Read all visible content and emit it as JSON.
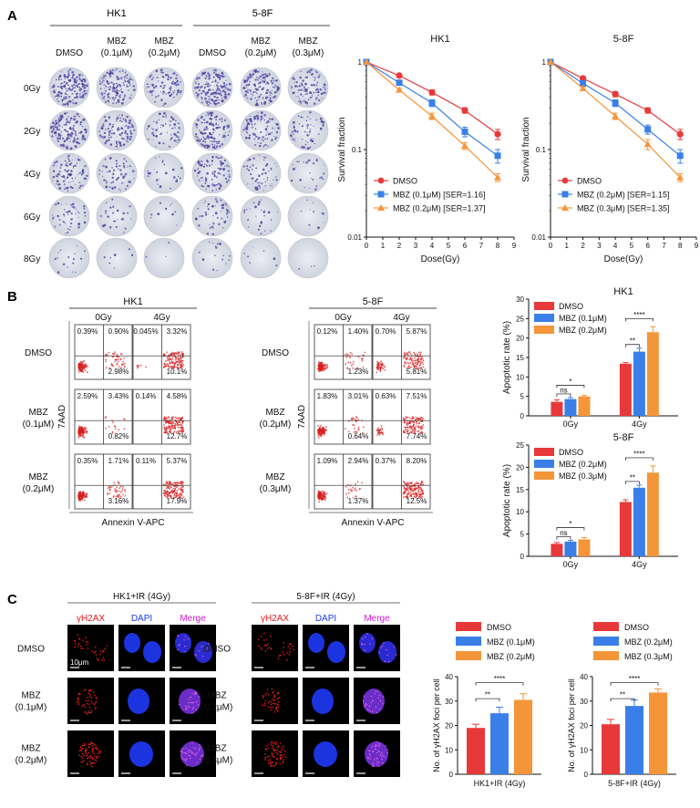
{
  "panel_labels": [
    "A",
    "B",
    "C"
  ],
  "panelA": {
    "group_labels": [
      "HK1",
      "5-8F"
    ],
    "column_headers": [
      [
        "DMSO",
        ""
      ],
      [
        "MBZ",
        "(0.1μM)"
      ],
      [
        "MBZ",
        "(0.2μM)"
      ],
      [
        "DMSO",
        ""
      ],
      [
        "MBZ",
        "(0.2μM)"
      ],
      [
        "MBZ",
        "(0.3μM)"
      ]
    ],
    "row_labels": [
      "0Gy",
      "2Gy",
      "4Gy",
      "6Gy",
      "8Gy"
    ],
    "colony_density": [
      [
        1.0,
        0.85,
        0.55,
        1.0,
        0.85,
        0.6
      ],
      [
        0.85,
        0.65,
        0.35,
        0.85,
        0.6,
        0.35
      ],
      [
        0.55,
        0.35,
        0.15,
        0.55,
        0.35,
        0.15
      ],
      [
        0.3,
        0.15,
        0.06,
        0.3,
        0.15,
        0.06
      ],
      [
        0.1,
        0.04,
        0.02,
        0.1,
        0.04,
        0.02
      ]
    ]
  },
  "chart_data": [
    {
      "type": "line",
      "title": "HK1",
      "xlabel": "Dose(Gy)",
      "ylabel": "Survival fraction",
      "yscale": "log",
      "xlim": [
        0,
        9
      ],
      "ylim": [
        0.01,
        1
      ],
      "x_ticks": [
        "0",
        "1",
        "2",
        "3",
        "4",
        "5",
        "6",
        "7",
        "8",
        "9"
      ],
      "y_ticks": [
        "1",
        "0.1",
        "0.01"
      ],
      "legend_position": "bottom-left",
      "series": [
        {
          "name": "DMSO",
          "color": "#e8393a",
          "marker": "circle",
          "x": [
            0,
            2,
            4,
            6,
            8
          ],
          "y": [
            1,
            0.7,
            0.45,
            0.28,
            0.15
          ],
          "err": [
            0,
            0.03,
            0.03,
            0.02,
            0.02
          ]
        },
        {
          "name": "MBZ (0.1μM) [SER=1.16]",
          "color": "#3a7fe8",
          "marker": "square",
          "x": [
            0,
            2,
            4,
            6,
            8
          ],
          "y": [
            1,
            0.58,
            0.34,
            0.16,
            0.085
          ],
          "err": [
            0,
            0.03,
            0.03,
            0.02,
            0.015
          ]
        },
        {
          "name": "MBZ (0.2μM) [SER=1.37]",
          "color": "#f5953a",
          "marker": "triangle",
          "x": [
            0,
            2,
            4,
            6,
            8
          ],
          "y": [
            1,
            0.48,
            0.24,
            0.11,
            0.048
          ],
          "err": [
            0,
            0.02,
            0.02,
            0.01,
            0.005
          ]
        }
      ]
    },
    {
      "type": "line",
      "title": "5-8F",
      "xlabel": "Dose(Gy)",
      "ylabel": "Survival fraction",
      "yscale": "log",
      "xlim": [
        0,
        9
      ],
      "ylim": [
        0.01,
        1
      ],
      "x_ticks": [
        "0",
        "1",
        "2",
        "3",
        "4",
        "5",
        "6",
        "7",
        "8",
        "9"
      ],
      "y_ticks": [
        "1",
        "0.1",
        "0.01"
      ],
      "legend_position": "bottom-left",
      "series": [
        {
          "name": "DMSO",
          "color": "#e8393a",
          "marker": "circle",
          "x": [
            0,
            2,
            4,
            6,
            8
          ],
          "y": [
            1,
            0.65,
            0.43,
            0.28,
            0.15
          ],
          "err": [
            0,
            0.03,
            0.03,
            0.02,
            0.02
          ]
        },
        {
          "name": "MBZ (0.2μM) [SER=1.15]",
          "color": "#3a7fe8",
          "marker": "square",
          "x": [
            0,
            2,
            4,
            6,
            8
          ],
          "y": [
            1,
            0.57,
            0.34,
            0.17,
            0.085
          ],
          "err": [
            0,
            0.03,
            0.03,
            0.02,
            0.015
          ]
        },
        {
          "name": "MBZ (0.3μM) [SER=1.35]",
          "color": "#f5953a",
          "marker": "triangle",
          "x": [
            0,
            2,
            4,
            6,
            8
          ],
          "y": [
            1,
            0.5,
            0.24,
            0.115,
            0.048
          ],
          "err": [
            0,
            0.02,
            0.02,
            0.015,
            0.005
          ]
        }
      ]
    },
    {
      "type": "bar",
      "title": "HK1",
      "ylabel": "Apoptotic rate (%)",
      "ylim": [
        0,
        30
      ],
      "y_ticks": [
        "0",
        "5",
        "10",
        "15",
        "20",
        "25",
        "30"
      ],
      "categories": [
        "0Gy",
        "4Gy"
      ],
      "legend_position": "top-left",
      "series": [
        {
          "name": "DMSO",
          "color": "#e8393a",
          "values": [
            3.6,
            13.4
          ],
          "err": [
            0.5,
            0.3
          ]
        },
        {
          "name": "MBZ (0.1μM)",
          "color": "#3a7fe8",
          "values": [
            4.3,
            16.5
          ],
          "err": [
            0.4,
            0.9
          ]
        },
        {
          "name": "MBZ (0.2μM)",
          "color": "#f5953a",
          "values": [
            5.0,
            21.5
          ],
          "err": [
            0.3,
            1.4
          ]
        }
      ],
      "annotations": [
        "ns",
        "*",
        "**",
        "****"
      ]
    },
    {
      "type": "bar",
      "title": "5-8F",
      "ylabel": "Apoptotic rate (%)",
      "ylim": [
        0,
        25
      ],
      "y_ticks": [
        "0",
        "5",
        "10",
        "15",
        "20",
        "25"
      ],
      "categories": [
        "0Gy",
        "4Gy"
      ],
      "legend_position": "top-left",
      "series": [
        {
          "name": "DMSO",
          "color": "#e8393a",
          "values": [
            2.8,
            12.2
          ],
          "err": [
            0.3,
            0.5
          ]
        },
        {
          "name": "MBZ (0.2μM)",
          "color": "#3a7fe8",
          "values": [
            3.3,
            15.4
          ],
          "err": [
            0.3,
            0.6
          ]
        },
        {
          "name": "MBZ (0.3μM)",
          "color": "#f5953a",
          "values": [
            3.8,
            18.8
          ],
          "err": [
            0.4,
            1.5
          ]
        }
      ],
      "annotations": [
        "ns",
        "*",
        "**",
        "****"
      ]
    },
    {
      "type": "bar",
      "xlabel": "HK1+IR (4Gy)",
      "ylabel": "No. of γH2AX foci per cell",
      "ylim": [
        0,
        40
      ],
      "y_ticks": [
        "0",
        "10",
        "20",
        "30",
        "40"
      ],
      "categories": [
        "HK1+IR (4Gy)"
      ],
      "legend_position": "top",
      "series": [
        {
          "name": "DMSO",
          "color": "#e8393a",
          "values": [
            19
          ],
          "err": [
            1.5
          ]
        },
        {
          "name": "MBZ (0.1μM)",
          "color": "#3a7fe8",
          "values": [
            25
          ],
          "err": [
            2.5
          ]
        },
        {
          "name": "MBZ (0.2μM)",
          "color": "#f5953a",
          "values": [
            30.5
          ],
          "err": [
            2.5
          ]
        }
      ],
      "annotations": [
        "**",
        "****"
      ]
    },
    {
      "type": "bar",
      "xlabel": "5-8F+IR (4Gy)",
      "ylabel": "No. of γH2AX foci per cell",
      "ylim": [
        0,
        40
      ],
      "y_ticks": [
        "0",
        "10",
        "20",
        "30",
        "40"
      ],
      "categories": [
        "5-8F+IR (4Gy)"
      ],
      "legend_position": "top",
      "series": [
        {
          "name": "DMSO",
          "color": "#e8393a",
          "values": [
            20.5
          ],
          "err": [
            2
          ]
        },
        {
          "name": "MBZ (0.2μM)",
          "color": "#3a7fe8",
          "values": [
            28
          ],
          "err": [
            2.5
          ]
        },
        {
          "name": "MBZ (0.3μM)",
          "color": "#f5953a",
          "values": [
            33.5
          ],
          "err": [
            1.5
          ]
        }
      ],
      "annotations": [
        "**",
        "****"
      ]
    }
  ],
  "panelB": {
    "flow_groups": [
      {
        "title": "HK1",
        "column_labels": [
          "0Gy",
          "4Gy"
        ],
        "row_labels": [
          [
            "DMSO",
            ""
          ],
          [
            "MBZ",
            "(0.1μM)"
          ],
          [
            "MBZ",
            "(0.2μM)"
          ]
        ],
        "quadrants": [
          [
            [
              "0.39%",
              "0.90%",
              "2.98%"
            ],
            [
              "0.045%",
              "3.32%",
              "10.1%"
            ]
          ],
          [
            [
              "2.59%",
              "3.43%",
              "0.82%"
            ],
            [
              "0.14%",
              "4.58%",
              "12.7%"
            ]
          ],
          [
            [
              "0.35%",
              "1.71%",
              "3.16%"
            ],
            [
              "0.11%",
              "5.37%",
              "17.9%"
            ]
          ]
        ]
      },
      {
        "title": "5-8F",
        "column_labels": [
          "0Gy",
          "4Gy"
        ],
        "row_labels": [
          [
            "DMSO",
            ""
          ],
          [
            "MBZ",
            "(0.2μM)"
          ],
          [
            "MBZ",
            "(0.3μM)"
          ]
        ],
        "quadrants": [
          [
            [
              "0.12%",
              "1.40%",
              "1.23%"
            ],
            [
              "0.70%",
              "5.87%",
              "5.81%"
            ]
          ],
          [
            [
              "1.83%",
              "3.01%",
              "0.64%"
            ],
            [
              "0.63%",
              "7.51%",
              "7.74%"
            ]
          ],
          [
            [
              "1.09%",
              "2.94%",
              "1.37%"
            ],
            [
              "0.37%",
              "8.20%",
              "12.5%"
            ]
          ]
        ]
      }
    ],
    "y_axis_label": "7AAD",
    "x_axis_label": "Annexin V-APC"
  },
  "panelC": {
    "groups": [
      {
        "title": "HK1+IR (4Gy)",
        "row_labels": [
          [
            "DMSO",
            ""
          ],
          [
            "MBZ",
            "(0.1μM)"
          ],
          [
            "MBZ",
            "(0.2μM)"
          ]
        ]
      },
      {
        "title": "5-8F+IR (4Gy)",
        "row_labels": [
          [
            "DMSO",
            ""
          ],
          [
            "MBZ",
            "(0.2μM)"
          ],
          [
            "MBZ",
            "(0.3μM)"
          ]
        ]
      }
    ],
    "channel_labels": [
      "γH2AX",
      "DAPI",
      "Merge"
    ],
    "channel_colors": [
      "#e8181c",
      "#1a3ae8",
      "#d81ad8"
    ],
    "scale_bar_label": "10μm"
  }
}
